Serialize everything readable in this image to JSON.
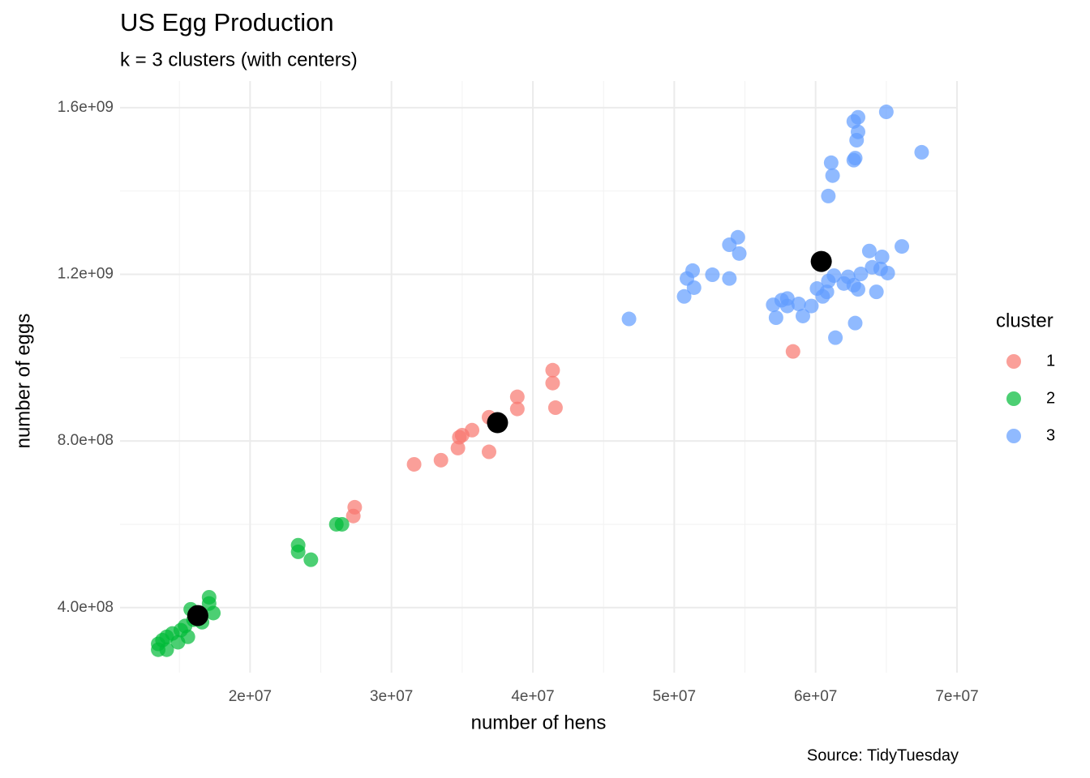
{
  "chart_data": {
    "type": "scatter",
    "title": "US Egg Production",
    "subtitle": "k = 3 clusters (with centers)",
    "x_label": "number of hens",
    "y_label": "number of eggs",
    "caption": "Source: TidyTuesday",
    "legend_title": "cluster",
    "legend_position": "right",
    "xlim": [
      10800000,
      70000000
    ],
    "ylim": [
      244000000,
      1664000000
    ],
    "xticks": [
      {
        "value": 20000000,
        "label": "2e+07"
      },
      {
        "value": 30000000,
        "label": "3e+07"
      },
      {
        "value": 40000000,
        "label": "4e+07"
      },
      {
        "value": 50000000,
        "label": "5e+07"
      },
      {
        "value": 60000000,
        "label": "6e+07"
      },
      {
        "value": 70000000,
        "label": "7e+07"
      }
    ],
    "yticks": [
      {
        "value": 400000000,
        "label": "4.0e+08"
      },
      {
        "value": 800000000,
        "label": "8.0e+08"
      },
      {
        "value": 1200000000,
        "label": "1.2e+09"
      },
      {
        "value": 1600000000,
        "label": "1.6e+09"
      }
    ],
    "grid": true,
    "series": [
      {
        "name": "1",
        "color": "#F8766D",
        "x": [
          58400000,
          27400000,
          27300000,
          31600000,
          33500000,
          34700000,
          34800000,
          35000000,
          35700000,
          36900000,
          36900000,
          38900000,
          38900000,
          41400000,
          41400000,
          41600000
        ],
        "values": [
          1015000000,
          641000000,
          620000000,
          744000000,
          754000000,
          783000000,
          809000000,
          814000000,
          826000000,
          774000000,
          857000000,
          877000000,
          906000000,
          939000000,
          970000000,
          880000000
        ]
      },
      {
        "name": "2",
        "color": "#00BA38",
        "x": [
          26100000,
          26500000,
          23400000,
          23400000,
          24300000,
          17100000,
          17100000,
          17400000,
          15800000,
          16000000,
          15600000,
          14900000,
          15100000,
          14500000,
          14100000,
          13800000,
          13500000,
          13500000,
          14100000,
          15400000,
          16600000
        ],
        "values": [
          600000000,
          600000000,
          550000000,
          534000000,
          515000000,
          425000000,
          410000000,
          387000000,
          396000000,
          371000000,
          330000000,
          317000000,
          346000000,
          338000000,
          330000000,
          322000000,
          313000000,
          299000000,
          299000000,
          356000000,
          365000000
        ]
      },
      {
        "name": "3",
        "color": "#619CFF",
        "x": [
          46800000,
          50700000,
          50900000,
          51300000,
          51400000,
          52700000,
          53900000,
          53900000,
          54500000,
          54600000,
          57000000,
          57200000,
          57600000,
          58000000,
          58000000,
          58800000,
          59100000,
          59700000,
          60100000,
          60500000,
          60800000,
          60900000,
          61300000,
          61400000,
          62000000,
          62300000,
          62700000,
          62800000,
          63000000,
          63200000,
          64000000,
          64300000,
          64600000,
          64700000,
          65100000,
          66100000,
          63800000,
          60900000,
          61200000,
          61100000,
          62700000,
          62800000,
          62900000,
          63000000,
          62700000,
          63000000,
          65000000,
          67500000
        ],
        "values": [
          1093000000,
          1147000000,
          1190000000,
          1209000000,
          1168000000,
          1199000000,
          1190000000,
          1271000000,
          1289000000,
          1250000000,
          1127000000,
          1096000000,
          1138000000,
          1142000000,
          1124000000,
          1129000000,
          1100000000,
          1124000000,
          1166000000,
          1147000000,
          1158000000,
          1184000000,
          1197000000,
          1048000000,
          1178000000,
          1194000000,
          1174000000,
          1083000000,
          1164000000,
          1201000000,
          1217000000,
          1158000000,
          1213000000,
          1242000000,
          1203000000,
          1267000000,
          1256000000,
          1388000000,
          1437000000,
          1468000000,
          1474000000,
          1479000000,
          1522000000,
          1542000000,
          1567000000,
          1577000000,
          1590000000,
          1493000000
        ]
      }
    ],
    "centers": {
      "color": "#000000",
      "x": [
        16300000,
        37500000,
        60400000
      ],
      "values": [
        381000000,
        844000000,
        1231000000
      ]
    }
  }
}
